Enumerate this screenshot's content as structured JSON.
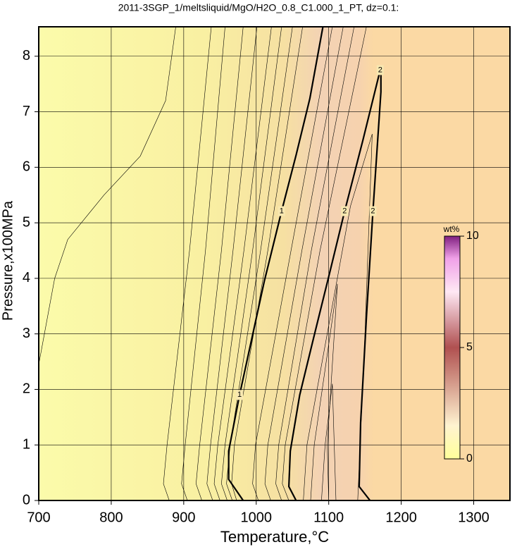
{
  "chart_data": {
    "type": "contour",
    "title": "2011-3SGP_1/meltsliquid/MgO/H2O_0.8_C1.000_1_PT, dz=0.1:",
    "xlabel": "Temperature,°C",
    "ylabel": "Pressure,x100MPa",
    "xlim": [
      700,
      1350
    ],
    "ylim": [
      0,
      8.53
    ],
    "xticks": [
      700,
      800,
      900,
      1000,
      1100,
      1200,
      1300
    ],
    "yticks": [
      0,
      1,
      2,
      3,
      4,
      5,
      6,
      7,
      8
    ],
    "grid": true,
    "colorbar": {
      "label": "wt%",
      "lim": [
        0,
        10
      ],
      "ticks": [
        0,
        5,
        10
      ]
    },
    "contours": [
      {
        "level": 1,
        "x": [
          982,
          962,
          962,
          977,
          992,
          1011,
          1035,
          1055,
          1074,
          1092
        ],
        "y": [
          0,
          0.38,
          0.89,
          1.9,
          2.8,
          3.94,
          5.21,
          6.22,
          7.24,
          8.53
        ]
      },
      {
        "level": 2,
        "x": [
          1055,
          1045,
          1047,
          1060,
          1079,
          1103,
          1122,
          1147,
          1171,
          1172,
          1172,
          1161,
          1152,
          1144,
          1142,
          1157
        ],
        "y": [
          0,
          0.25,
          0.89,
          1.9,
          2.92,
          4.19,
          5.21,
          6.48,
          7.75,
          7.75,
          7.36,
          5.21,
          3.3,
          1.4,
          0.25,
          0
        ]
      },
      {
        "level": 0.1,
        "x": [
          700,
          722,
          740,
          790,
          840,
          875,
          889
        ],
        "y": [
          2.45,
          4.0,
          4.7,
          5.5,
          6.2,
          7.2,
          8.53
        ]
      },
      {
        "level": 0.2,
        "x": [
          880,
          872,
          877,
          908,
          938
        ],
        "y": [
          0,
          0.3,
          1.0,
          4.5,
          8.53
        ]
      },
      {
        "level": 0.3,
        "x": [
          905,
          897,
          902,
          930,
          957
        ],
        "y": [
          0,
          0.3,
          1.0,
          4.5,
          8.53
        ]
      },
      {
        "level": 0.4,
        "x": [
          925,
          917,
          922,
          952,
          982
        ],
        "y": [
          0,
          0.3,
          1.0,
          4.5,
          8.53
        ]
      },
      {
        "level": 0.5,
        "x": [
          940,
          932,
          937,
          968,
          1001
        ],
        "y": [
          0,
          0.3,
          1.0,
          4.5,
          8.53
        ]
      },
      {
        "level": 0.6,
        "x": [
          950,
          942,
          947,
          983,
          1021
        ],
        "y": [
          0,
          0.3,
          1.0,
          4.5,
          8.53
        ]
      },
      {
        "level": 0.7,
        "x": [
          960,
          952,
          957,
          995,
          1035
        ],
        "y": [
          0,
          0.3,
          1.0,
          4.5,
          8.53
        ]
      },
      {
        "level": 0.8,
        "x": [
          967,
          959,
          964,
          1006,
          1050
        ],
        "y": [
          0,
          0.3,
          1.0,
          4.5,
          8.53
        ]
      },
      {
        "level": 0.9,
        "x": [
          973,
          966,
          970,
          1016,
          1064
        ],
        "y": [
          0,
          0.3,
          1.0,
          4.5,
          8.53
        ]
      },
      {
        "level": 1.2,
        "x": [
          1003,
          995,
          999,
          1048,
          1105
        ],
        "y": [
          0,
          0.3,
          1.0,
          4.5,
          8.53
        ]
      },
      {
        "level": 1.4,
        "x": [
          1020,
          1012,
          1016,
          1063,
          1120
        ],
        "y": [
          0,
          0.3,
          1.0,
          4.5,
          8.53
        ]
      },
      {
        "level": 1.6,
        "x": [
          1035,
          1027,
          1031,
          1076,
          1135
        ],
        "y": [
          0,
          0.3,
          1.0,
          4.5,
          8.53
        ]
      },
      {
        "level": 1.8,
        "x": [
          1045,
          1036,
          1040,
          1088,
          1152
        ],
        "y": [
          0,
          0.3,
          1.0,
          4.5,
          8.53
        ]
      },
      {
        "level": 2.1,
        "x": [
          1065,
          1070,
          1130,
          1160,
          1150,
          1140
        ],
        "y": [
          0,
          1,
          5.3,
          6.6,
          3,
          0
        ]
      },
      {
        "level": 2.2,
        "x": [
          1075,
          1080,
          1112,
          1098,
          1100
        ],
        "y": [
          0,
          1,
          3.9,
          1,
          0
        ]
      },
      {
        "level": 2.4,
        "x": [
          1090,
          1095,
          1105,
          1110
        ],
        "y": [
          0,
          1,
          2.1,
          0
        ]
      }
    ]
  }
}
